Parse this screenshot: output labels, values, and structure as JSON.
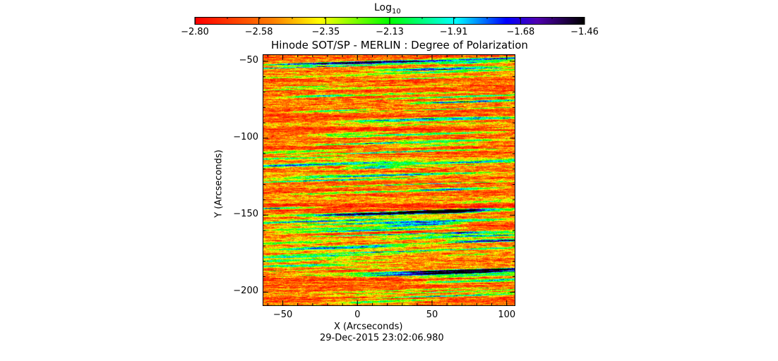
{
  "chart_data": {
    "type": "heatmap",
    "title": "Hinode SOT/SP - MERLIN : Degree of Polarization",
    "xlabel": "X (Arcseconds)",
    "ylabel": "Y (Arcseconds)",
    "xlim": [
      -63.5,
      105.8
    ],
    "ylim": [
      -209,
      -45.5
    ],
    "xticks": [
      -50,
      0,
      50,
      100
    ],
    "xtick_labels": [
      "−50",
      "0",
      "50",
      "100"
    ],
    "yticks": [
      -50,
      -100,
      -150,
      -200
    ],
    "ytick_labels": [
      "−50",
      "−100",
      "−150",
      "−200"
    ],
    "timestamp": "29-Dec-2015 23:02:06.980",
    "colorbar": {
      "title_base": "Log",
      "title_sub": "10",
      "range": [
        -2.8,
        -1.46
      ],
      "ticks": [
        -2.8,
        -2.58,
        -2.35,
        -2.13,
        -1.91,
        -1.68,
        -1.46
      ],
      "tick_labels": [
        "−2.80",
        "−2.58",
        "−2.35",
        "−2.13",
        "−1.91",
        "−1.68",
        "−1.46"
      ],
      "colormap": [
        "#ff0000",
        "#ff8000",
        "#ffff00",
        "#00ff00",
        "#00ffff",
        "#0000ff",
        "#5000b0",
        "#000000"
      ]
    },
    "notable_features": "mostly red/orange (low polarization) with horizontal green/cyan/blue streaks"
  }
}
